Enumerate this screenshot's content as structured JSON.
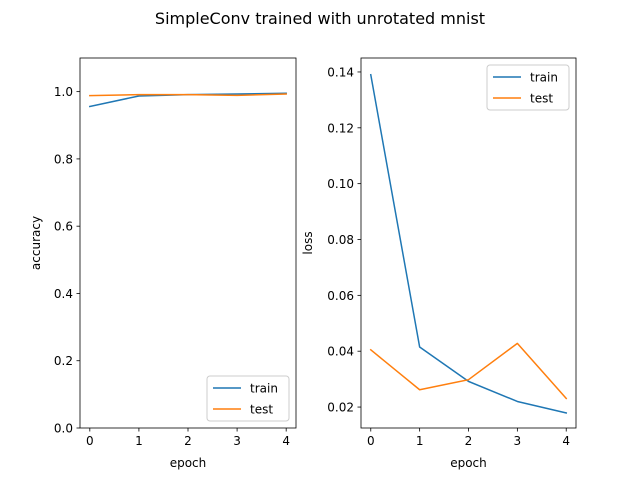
{
  "figure": {
    "suptitle": "SimpleConv trained with unrotated mnist"
  },
  "chart_data": [
    {
      "type": "line",
      "xlabel": "epoch",
      "ylabel": "accuracy",
      "x": [
        0,
        1,
        2,
        3,
        4
      ],
      "xticks": [
        "0",
        "1",
        "2",
        "3",
        "4"
      ],
      "xlim": [
        -0.2,
        4.2
      ],
      "yticks": [
        "0.0",
        "0.2",
        "0.4",
        "0.6",
        "0.8",
        "1.0"
      ],
      "ylim": [
        0.0,
        1.1
      ],
      "legend": "lower-right",
      "series": [
        {
          "name": "train",
          "color": "#1f77b4",
          "values": [
            0.956,
            0.987,
            0.991,
            0.993,
            0.995
          ]
        },
        {
          "name": "test",
          "color": "#ff7f0e",
          "values": [
            0.988,
            0.991,
            0.991,
            0.989,
            0.993
          ]
        }
      ]
    },
    {
      "type": "line",
      "xlabel": "epoch",
      "ylabel": "loss",
      "x": [
        0,
        1,
        2,
        3,
        4
      ],
      "xticks": [
        "0",
        "1",
        "2",
        "3",
        "4"
      ],
      "xlim": [
        -0.2,
        4.2
      ],
      "yticks": [
        "0.02",
        "0.04",
        "0.06",
        "0.08",
        "0.10",
        "0.12",
        "0.14"
      ],
      "ylim": [
        0.0125,
        0.145
      ],
      "legend": "top-right",
      "series": [
        {
          "name": "train",
          "color": "#1f77b4",
          "values": [
            0.139,
            0.0415,
            0.0292,
            0.022,
            0.0179
          ]
        },
        {
          "name": "test",
          "color": "#ff7f0e",
          "values": [
            0.0405,
            0.0262,
            0.0298,
            0.0428,
            0.0231
          ]
        }
      ]
    }
  ]
}
